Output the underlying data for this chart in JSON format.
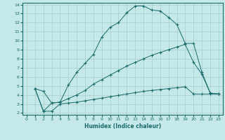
{
  "xlabel": "Humidex (Indice chaleur)",
  "bg_color": "#c5e8e8",
  "line_color": "#1a6b6b",
  "grid_color": "#a8cccc",
  "xlim": [
    -0.5,
    23.5
  ],
  "ylim": [
    1.8,
    14.2
  ],
  "xticks": [
    0,
    1,
    2,
    3,
    4,
    5,
    6,
    7,
    8,
    9,
    10,
    11,
    12,
    13,
    14,
    15,
    16,
    17,
    18,
    19,
    20,
    21,
    22,
    23
  ],
  "yticks": [
    2,
    3,
    4,
    5,
    6,
    7,
    8,
    9,
    10,
    11,
    12,
    13,
    14
  ],
  "line1_x": [
    1,
    2,
    3,
    4,
    5,
    6,
    7,
    8,
    9,
    10,
    11,
    12,
    13,
    14,
    15,
    16,
    17,
    18,
    19,
    20,
    21,
    22,
    23
  ],
  "line1_y": [
    4.7,
    4.4,
    3.1,
    3.2,
    5.1,
    6.5,
    7.5,
    8.5,
    10.4,
    11.5,
    12.0,
    13.1,
    13.85,
    13.85,
    13.4,
    13.3,
    12.6,
    11.8,
    9.7,
    9.7,
    6.5,
    4.2,
    4.1
  ],
  "line2_x": [
    1,
    2,
    3,
    4,
    5,
    6,
    7,
    8,
    9,
    10,
    11,
    12,
    13,
    14,
    15,
    16,
    17,
    18,
    19,
    20,
    21,
    22,
    23
  ],
  "line2_y": [
    4.7,
    2.2,
    3.1,
    3.2,
    3.6,
    4.0,
    4.5,
    5.2,
    5.7,
    6.2,
    6.7,
    7.2,
    7.6,
    8.0,
    8.4,
    8.7,
    9.0,
    9.3,
    9.6,
    7.6,
    6.3,
    4.2,
    4.1
  ],
  "line3_x": [
    1,
    2,
    3,
    4,
    5,
    6,
    7,
    8,
    9,
    10,
    11,
    12,
    13,
    14,
    15,
    16,
    17,
    18,
    19,
    20,
    21,
    22,
    23
  ],
  "line3_y": [
    4.7,
    2.2,
    2.2,
    3.0,
    3.1,
    3.2,
    3.35,
    3.5,
    3.65,
    3.8,
    3.95,
    4.1,
    4.25,
    4.4,
    4.5,
    4.6,
    4.7,
    4.8,
    4.9,
    4.1,
    4.1,
    4.1,
    4.1
  ]
}
